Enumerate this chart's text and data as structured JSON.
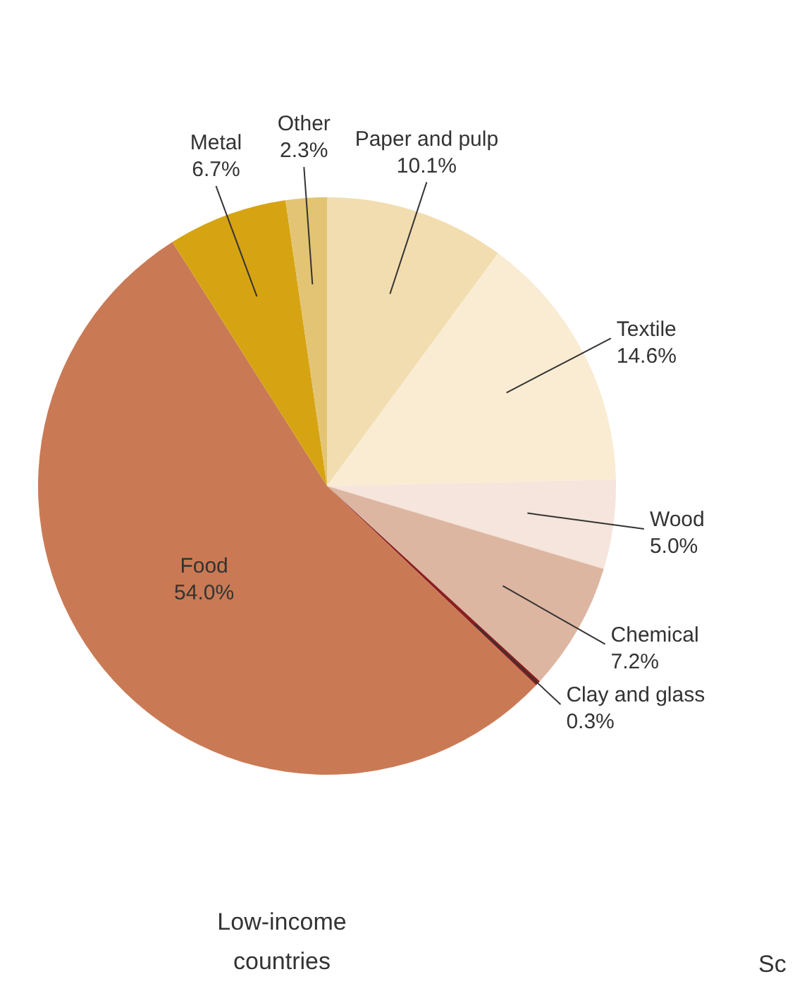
{
  "chart_data": {
    "type": "pie",
    "title": "Low-income countries",
    "categories": [
      "Paper and pulp",
      "Textile",
      "Wood",
      "Chemical",
      "Clay and glass",
      "Food",
      "Metal",
      "Other"
    ],
    "values": [
      10.1,
      14.6,
      5.0,
      7.2,
      0.3,
      54.0,
      6.7,
      2.3
    ],
    "colors": [
      "#f2ddb0",
      "#f9ecd2",
      "#f5e5dc",
      "#ddb6a2",
      "#8a1f1f",
      "#c97a55",
      "#d6a412",
      "#e3c474"
    ],
    "value_labels": [
      "10.1%",
      "14.6%",
      "5.0%",
      "7.2%",
      "0.3%",
      "54.0%",
      "6.7%",
      "2.3%"
    ],
    "annotations": [
      "Sc"
    ]
  }
}
